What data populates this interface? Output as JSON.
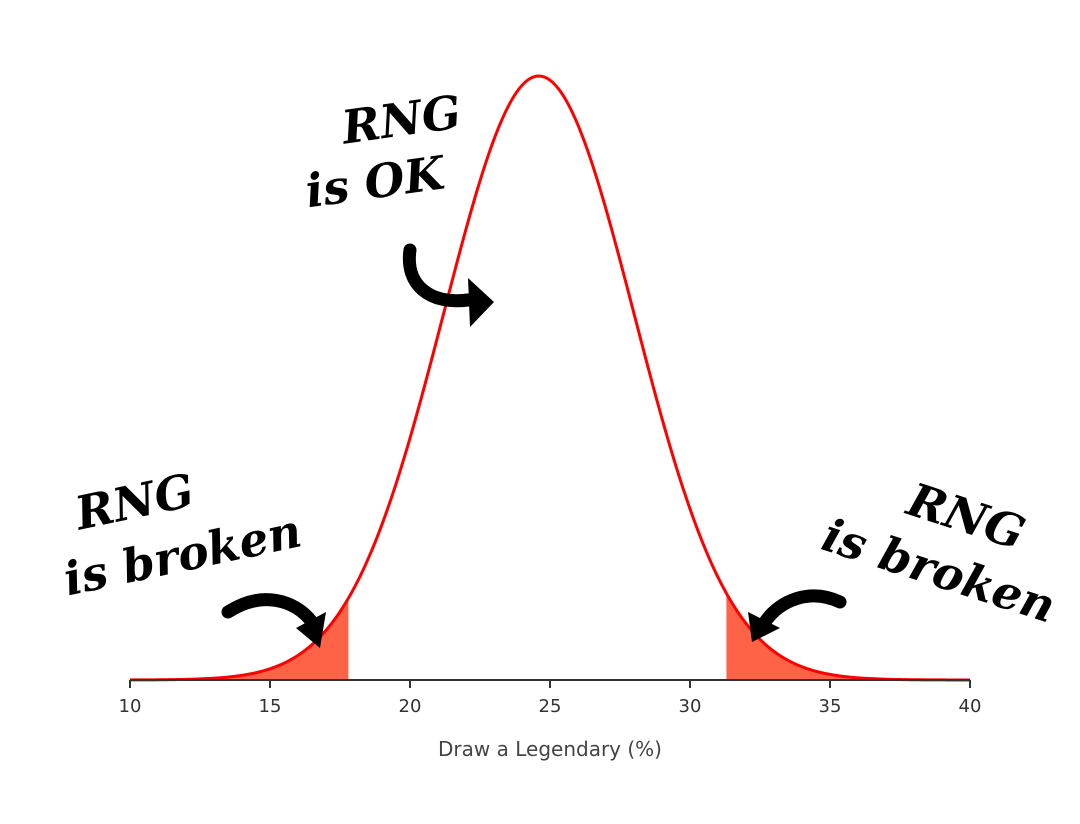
{
  "chart_data": {
    "type": "area",
    "xlabel": "Draw a Legendary (%)",
    "ylabel": "",
    "title": "",
    "xlim": [
      10,
      40
    ],
    "xticks": [
      10,
      15,
      20,
      25,
      30,
      35,
      40
    ],
    "xtick_labels": [
      "10",
      "15",
      "20",
      "25",
      "30",
      "35",
      "40"
    ],
    "grid": false,
    "y_axis_visible": false,
    "distribution": {
      "kind": "normal",
      "mean": 24.6,
      "std": 3.4
    },
    "shaded_regions": [
      {
        "from": 10,
        "to": 17.8
      },
      {
        "from": 31.3,
        "to": 40
      }
    ],
    "annotations": [
      {
        "id": "center",
        "lines": [
          "RNG",
          "is OK"
        ]
      },
      {
        "id": "left-tail",
        "lines": [
          "RNG",
          "is broken"
        ]
      },
      {
        "id": "right-tail",
        "lines": [
          "RNG",
          "is broken"
        ]
      }
    ],
    "colors": {
      "curve": "#ff0000",
      "shading": "#ff6347",
      "axis": "#333333",
      "text": "#000000"
    }
  }
}
